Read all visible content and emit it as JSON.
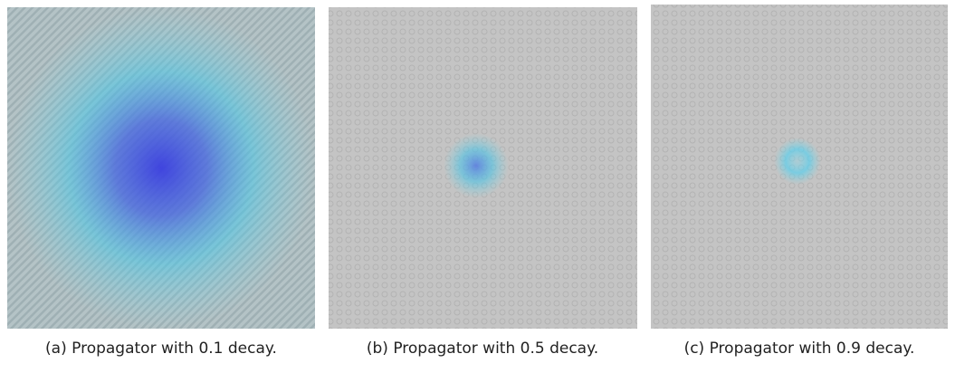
{
  "figures": [
    {
      "caption": "(a) Propagator with 0.1 decay."
    },
    {
      "caption": "(b) Propagator with 0.5 decay."
    },
    {
      "caption": "(c) Propagator with 0.9 decay."
    }
  ]
}
